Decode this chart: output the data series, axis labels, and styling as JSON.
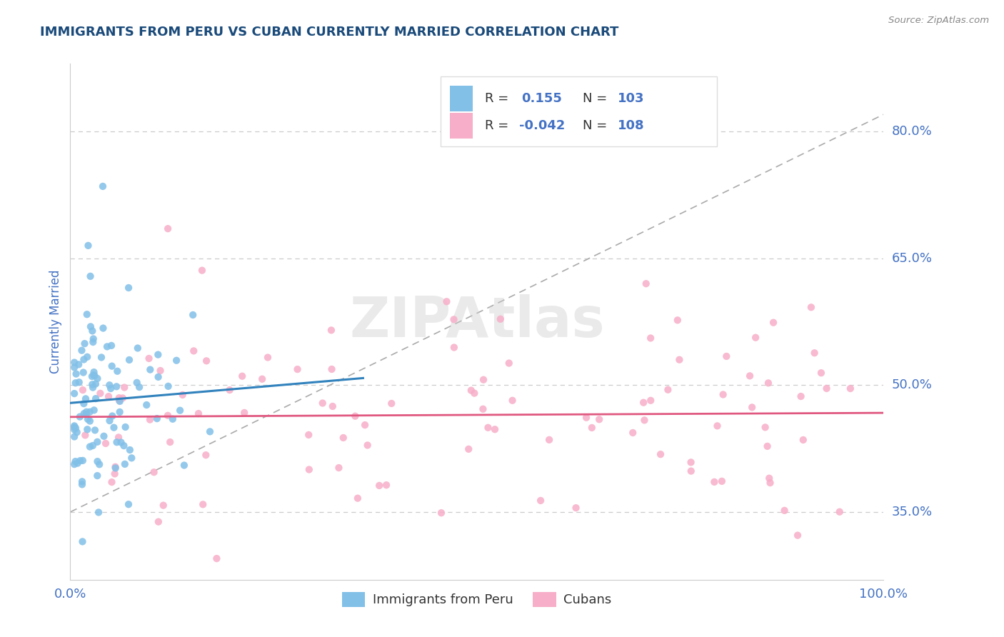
{
  "title": "IMMIGRANTS FROM PERU VS CUBAN CURRENTLY MARRIED CORRELATION CHART",
  "source": "Source: ZipAtlas.com",
  "ylabel": "Currently Married",
  "watermark": "ZIPAtlas",
  "ytick_vals": [
    0.35,
    0.5,
    0.65,
    0.8
  ],
  "ytick_labels": [
    "35.0%",
    "50.0%",
    "65.0%",
    "80.0%"
  ],
  "xtick_labels": [
    "0.0%",
    "100.0%"
  ],
  "peru_color": "#82c0e8",
  "cuba_color": "#f7aec8",
  "peru_line_color": "#3182bd",
  "cuba_line_color": "#e05880",
  "dash_line_color": "#aaaaaa",
  "grid_color": "#cccccc",
  "title_color": "#1a4a7a",
  "blue_color": "#4472c4",
  "background_color": "#ffffff",
  "xlim": [
    0.0,
    1.0
  ],
  "ylim": [
    0.27,
    0.88
  ],
  "peru_r": 0.155,
  "peru_n": 103,
  "cuba_r": -0.042,
  "cuba_n": 108,
  "legend_r_label": "R = ",
  "legend_n_label": "N = "
}
